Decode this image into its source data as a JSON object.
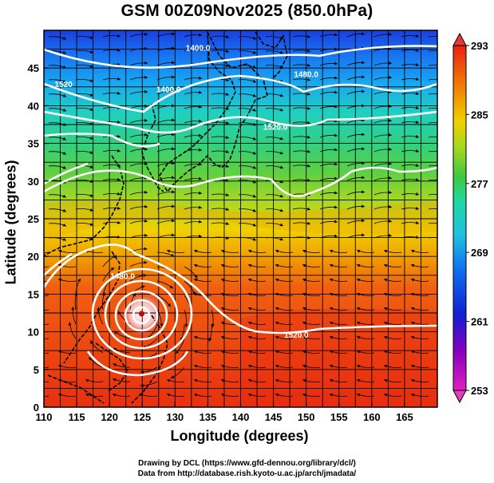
{
  "title": "GSM 00Z09Nov2025 (850.0hPa)",
  "xlabel": "Longitude (degrees)",
  "ylabel": "Latitude  (degrees)",
  "credits": [
    "Drawing by DCL (https://www.gfd-dennou.org/library/dcl/)",
    "Data from http://database.rish.kyoto-u.ac.jp/arch/jmadata/"
  ],
  "chart_data": {
    "type": "heatmap",
    "field": "temperature at 850 hPa with streamlines and geopotential height contours",
    "x_ticks": [
      110,
      115,
      120,
      125,
      130,
      135,
      140,
      145,
      150,
      155,
      160,
      165
    ],
    "y_ticks": [
      0,
      5,
      10,
      15,
      20,
      25,
      30,
      35,
      40,
      45
    ],
    "xlim": [
      110,
      170
    ],
    "ylim": [
      0,
      50
    ],
    "colorbar": {
      "ticks": [
        253,
        261,
        269,
        277,
        285,
        293
      ],
      "range": [
        253,
        293
      ],
      "colors": [
        "#e020c0",
        "#8000c0",
        "#1020d0",
        "#1070f0",
        "#20c0e0",
        "#20d8a0",
        "#40c840",
        "#a0d820",
        "#f0d000",
        "#f09000",
        "#f05010",
        "#e82010"
      ]
    },
    "contour_labels": [
      {
        "text": "1400.0",
        "lon": 133.5,
        "lat": 47.3
      },
      {
        "text": "1400.0",
        "lon": 129.0,
        "lat": 41.8
      },
      {
        "text": "1480.0",
        "lon": 150.0,
        "lat": 43.8
      },
      {
        "text": "1520.0",
        "lon": 145.3,
        "lat": 36.8
      },
      {
        "text": "1520",
        "lon": 113.0,
        "lat": 42.5
      },
      {
        "text": "1480.0",
        "lon": 122.0,
        "lat": 17.0
      },
      {
        "text": "1520.0",
        "lon": 148.5,
        "lat": 9.2
      }
    ],
    "typhoon_center": {
      "lon": 124.9,
      "lat": 12.4
    }
  }
}
